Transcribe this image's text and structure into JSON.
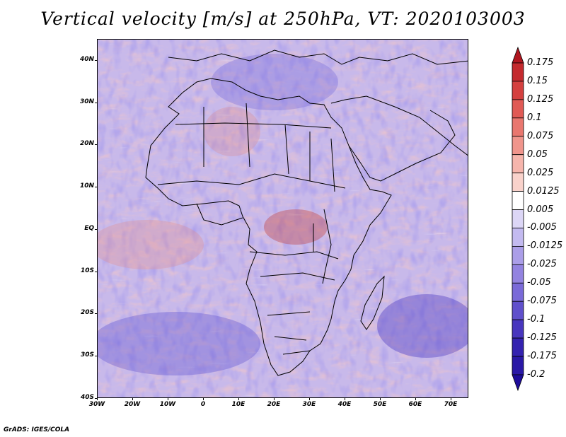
{
  "title": "Vertical velocity [m/s] at 250hPa, VT: 2020103003",
  "map": {
    "region": "Africa",
    "field": "vertical velocity",
    "units": "m/s",
    "level": "250hPa",
    "lon_range": [
      -30,
      75
    ],
    "lat_range": [
      -40,
      45
    ],
    "lat_labels": [
      {
        "value": 40,
        "text": "40N"
      },
      {
        "value": 30,
        "text": "30N"
      },
      {
        "value": 20,
        "text": "20N"
      },
      {
        "value": 10,
        "text": "10N"
      },
      {
        "value": 0,
        "text": "EQ"
      },
      {
        "value": -10,
        "text": "10S"
      },
      {
        "value": -20,
        "text": "20S"
      },
      {
        "value": -30,
        "text": "30S"
      },
      {
        "value": -40,
        "text": "40S"
      }
    ],
    "lon_labels": [
      {
        "value": -30,
        "text": "30W"
      },
      {
        "value": -20,
        "text": "20W"
      },
      {
        "value": -10,
        "text": "10W"
      },
      {
        "value": 0,
        "text": "0"
      },
      {
        "value": 10,
        "text": "10E"
      },
      {
        "value": 20,
        "text": "20E"
      },
      {
        "value": 30,
        "text": "30E"
      },
      {
        "value": 40,
        "text": "40E"
      },
      {
        "value": 50,
        "text": "50E"
      },
      {
        "value": 60,
        "text": "60E"
      },
      {
        "value": 70,
        "text": "70E"
      }
    ]
  },
  "colorbar": {
    "labels": [
      "0.175",
      "0.15",
      "0.125",
      "0.1",
      "0.075",
      "0.05",
      "0.025",
      "0.0125",
      "0.005",
      "-0.005",
      "-0.0125",
      "-0.025",
      "-0.05",
      "-0.075",
      "-0.1",
      "-0.125",
      "-0.175",
      "-0.2"
    ],
    "colors": [
      "#b0161f",
      "#c42a2e",
      "#d4403f",
      "#e05a55",
      "#e9776f",
      "#f0958c",
      "#f6b5ac",
      "#f9d2cb",
      "#ffffff",
      "#dcd6f6",
      "#c3baf0",
      "#ab9ee8",
      "#9383e0",
      "#7a6ad8",
      "#6050cc",
      "#4836be",
      "#3422b0",
      "#2a18a6",
      "#1e0c9a"
    ]
  },
  "footer": "GrADS: IGES/COLA"
}
